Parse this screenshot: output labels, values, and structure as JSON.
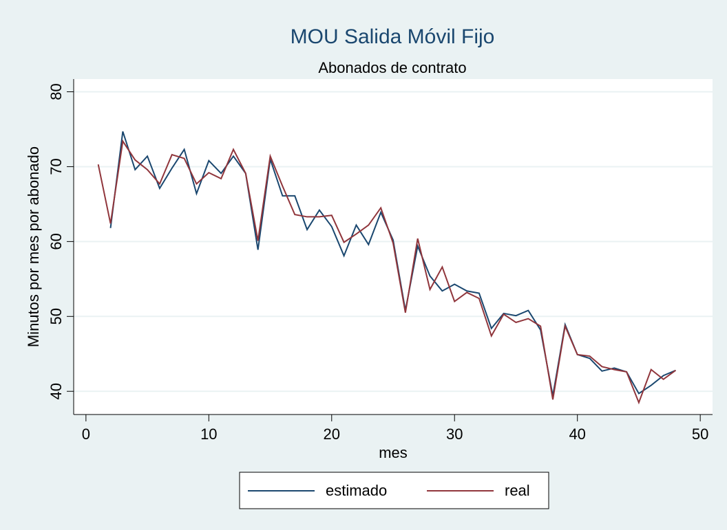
{
  "chart_data": {
    "type": "line",
    "title": "MOU Salida Móvil Fijo",
    "subtitle": "Abonados de contrato",
    "x_label": "mes",
    "y_label": "Minutos por mes por abonado",
    "x": [
      1,
      2,
      3,
      4,
      5,
      6,
      7,
      8,
      9,
      10,
      11,
      12,
      13,
      14,
      15,
      16,
      17,
      18,
      19,
      20,
      21,
      22,
      23,
      24,
      25,
      26,
      27,
      28,
      29,
      30,
      31,
      32,
      33,
      34,
      35,
      36,
      37,
      38,
      39,
      40,
      41,
      42,
      43,
      44,
      45,
      46,
      47,
      48
    ],
    "series": [
      {
        "name": "estimado",
        "color": "#1a476f",
        "values": [
          null,
          61.8,
          74.7,
          69.6,
          71.4,
          67.1,
          69.8,
          72.3,
          66.4,
          70.8,
          69.1,
          71.4,
          69.1,
          58.9,
          71.0,
          66.1,
          66.1,
          61.6,
          64.2,
          62.0,
          58.1,
          62.2,
          59.6,
          63.9,
          60.2,
          50.8,
          59.4,
          55.4,
          53.4,
          54.3,
          53.4,
          53.1,
          48.4,
          50.4,
          50.1,
          50.8,
          48.2,
          39.4,
          48.9,
          44.9,
          44.4,
          42.7,
          43.1,
          42.6,
          39.7,
          40.8,
          42.1,
          42.8
        ]
      },
      {
        "name": "real",
        "color": "#90353b",
        "values": [
          70.3,
          62.4,
          73.4,
          70.9,
          69.6,
          67.7,
          71.6,
          71.1,
          67.7,
          69.2,
          68.4,
          72.3,
          69.1,
          60.1,
          71.4,
          67.4,
          63.6,
          63.3,
          63.3,
          63.5,
          59.9,
          61.0,
          62.2,
          64.5,
          59.8,
          50.5,
          60.4,
          53.6,
          56.6,
          52.0,
          53.2,
          52.4,
          47.4,
          50.3,
          49.2,
          49.7,
          48.7,
          38.9,
          48.7,
          44.9,
          44.7,
          43.3,
          42.9,
          42.6,
          38.5,
          42.9,
          41.6,
          42.8
        ]
      }
    ],
    "xlim": [
      -1,
      51
    ],
    "ylim": [
      36.9,
      81.7
    ],
    "xticks": [
      0,
      10,
      20,
      30,
      40,
      50
    ],
    "yticks": [
      40,
      50,
      60,
      70,
      80
    ],
    "grid": true,
    "legend": "bottom"
  }
}
